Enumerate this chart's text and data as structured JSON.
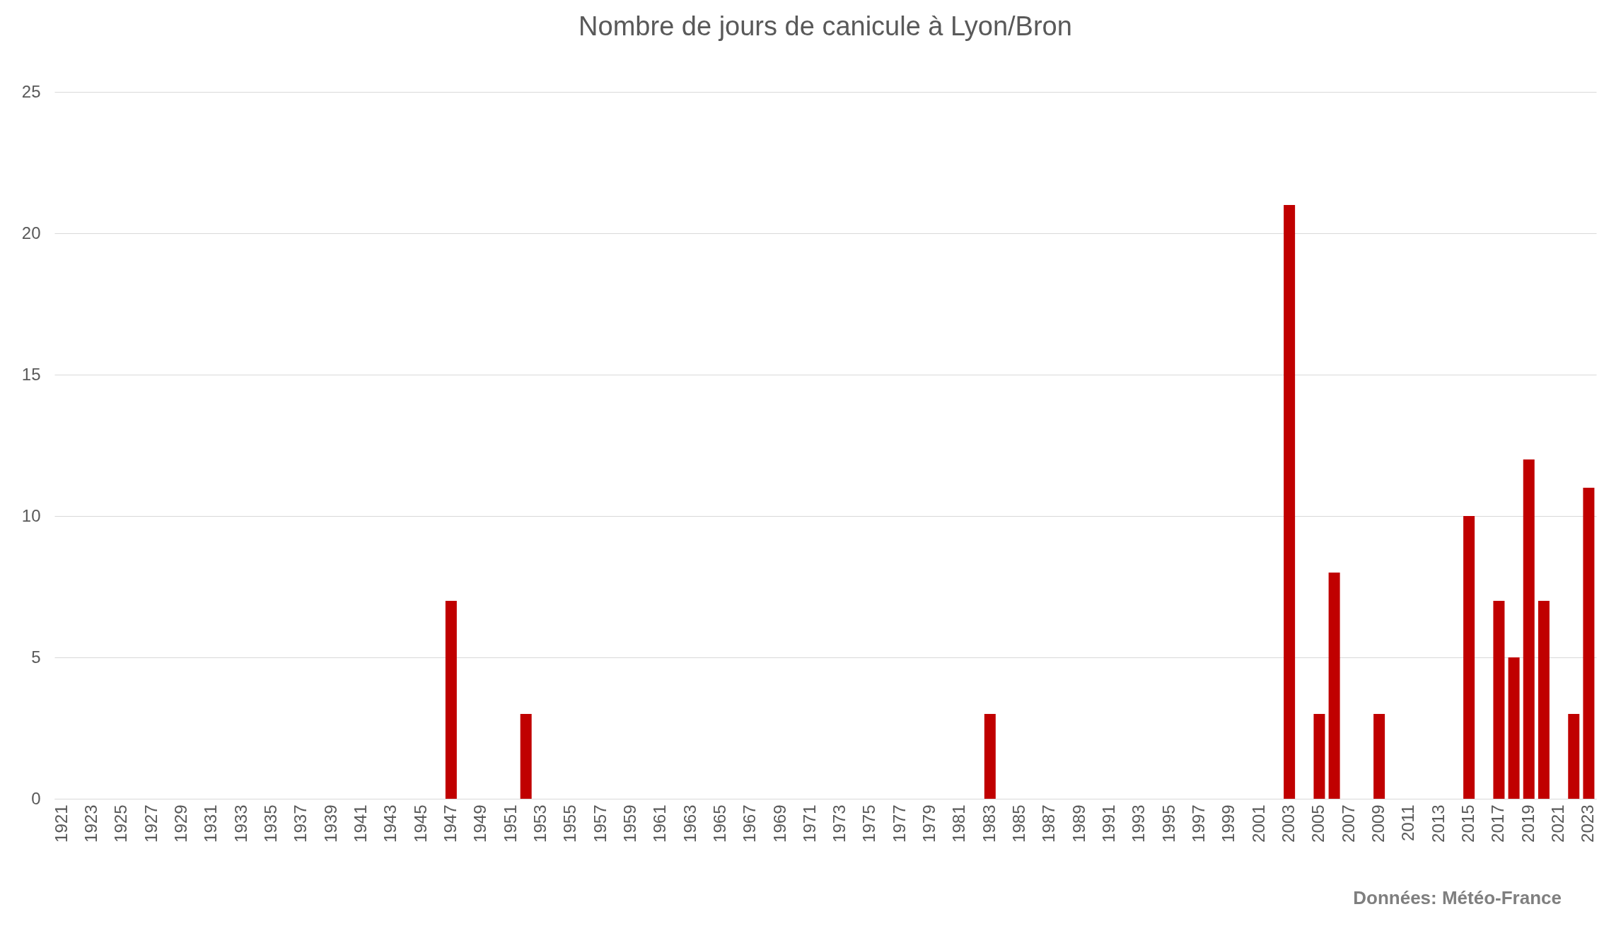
{
  "chart_data": {
    "type": "bar",
    "title": "Nombre de jours de canicule à Lyon/Bron",
    "categories": [
      "1921",
      null,
      "1923",
      null,
      "1925",
      null,
      "1927",
      null,
      "1929",
      null,
      "1931",
      null,
      "1933",
      null,
      "1935",
      null,
      "1937",
      null,
      "1939",
      null,
      "1941",
      null,
      "1943",
      null,
      "1945",
      null,
      "1947",
      null,
      "1949",
      null,
      "1951",
      null,
      "1953",
      null,
      "1955",
      null,
      "1957",
      null,
      "1959",
      null,
      "1961",
      null,
      "1963",
      null,
      "1965",
      null,
      "1967",
      null,
      "1969",
      null,
      "1971",
      null,
      "1973",
      null,
      "1975",
      null,
      "1977",
      null,
      "1979",
      null,
      "1981",
      null,
      "1983",
      null,
      "1985",
      null,
      "1987",
      null,
      "1989",
      null,
      "1991",
      null,
      "1993",
      null,
      "1995",
      null,
      "1997",
      null,
      "1999",
      null,
      "2001",
      null,
      "2003",
      null,
      "2005",
      null,
      "2007",
      null,
      "2009",
      null,
      "2011",
      null,
      "2013",
      null,
      "2015",
      null,
      "2017",
      null,
      "2019",
      null,
      "2021",
      null,
      "2023"
    ],
    "values": [
      0,
      0,
      0,
      0,
      0,
      0,
      0,
      0,
      0,
      0,
      0,
      0,
      0,
      0,
      0,
      0,
      0,
      0,
      0,
      0,
      0,
      0,
      0,
      0,
      0,
      0,
      7,
      0,
      0,
      0,
      0,
      3,
      0,
      0,
      0,
      0,
      0,
      0,
      0,
      0,
      0,
      0,
      0,
      0,
      0,
      0,
      0,
      0,
      0,
      0,
      0,
      0,
      0,
      0,
      0,
      0,
      0,
      0,
      0,
      0,
      0,
      0,
      3,
      0,
      0,
      0,
      0,
      0,
      0,
      0,
      0,
      0,
      0,
      0,
      0,
      0,
      0,
      0,
      0,
      0,
      0,
      0,
      21,
      0,
      3,
      8,
      0,
      0,
      3,
      0,
      0,
      0,
      0,
      0,
      10,
      0,
      7,
      5,
      12,
      7,
      0,
      3,
      11
    ],
    "color": "#c00000",
    "ylim": [
      0,
      25
    ],
    "yticks": [
      0,
      5,
      10,
      15,
      20,
      25
    ],
    "grid": "y",
    "annotations": [
      "Données: Météo-France"
    ]
  }
}
